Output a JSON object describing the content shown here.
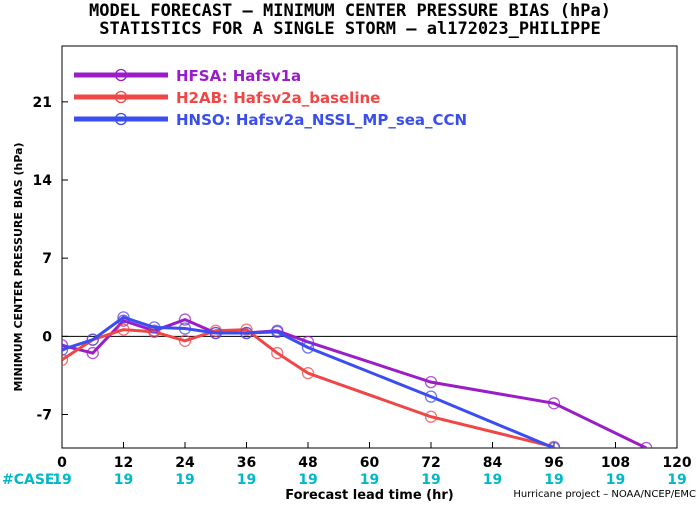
{
  "title": {
    "line1": "MODEL FORECAST – MINIMUM CENTER PRESSURE BIAS (hPa)",
    "line2": "STATISTICS FOR A SINGLE STORM – al172023_PHILIPPE"
  },
  "credit": "Hurricane project – NOAA/NCEP/EMC",
  "case_label": "#CASE",
  "case_counts": [
    "19",
    "19",
    "19",
    "19",
    "19",
    "19",
    "19",
    "19",
    "19",
    "19",
    "19"
  ],
  "colors": {
    "hfsa": "#9a1ec8",
    "h2ab": "#f04646",
    "hnso": "#3a4ef0",
    "case": "#00b8c8",
    "zero_line": "#000000"
  },
  "chart_data": {
    "type": "line",
    "title": "MODEL FORECAST – MINIMUM CENTER PRESSURE BIAS (hPa)",
    "subtitle": "STATISTICS FOR A SINGLE STORM – al172023_PHILIPPE",
    "xlabel": "Forecast lead time (hr)",
    "ylabel": "MINIMUM CENTER PRESSURE BIAS (hPa)",
    "xlim": [
      0,
      120
    ],
    "ylim": [
      -10,
      26
    ],
    "xticks": [
      0,
      12,
      24,
      36,
      48,
      60,
      72,
      84,
      96,
      108,
      120
    ],
    "yticks": [
      -7,
      0,
      7,
      14,
      21
    ],
    "legend_position": "top-left",
    "grid": false,
    "series": [
      {
        "name": "HFSA: Hafsv1a",
        "color": "#9a1ec8",
        "x": [
          0,
          6,
          12,
          18,
          24,
          30,
          36,
          42,
          48,
          72,
          96,
          114
        ],
        "y": [
          -0.8,
          -1.5,
          1.4,
          0.5,
          1.5,
          0.3,
          0.3,
          0.5,
          -0.5,
          -4.1,
          -6.0,
          -10.0
        ]
      },
      {
        "name": "H2AB: Hafsv2a_baseline",
        "color": "#f04646",
        "x": [
          0,
          6,
          12,
          18,
          24,
          30,
          36,
          42,
          48,
          72,
          96
        ],
        "y": [
          -2.1,
          -0.3,
          0.6,
          0.4,
          -0.4,
          0.5,
          0.6,
          -1.5,
          -3.3,
          -7.2,
          -9.9
        ]
      },
      {
        "name": "HNSO: Hafsv2a_NSSL_MP_sea_CCN",
        "color": "#3a4ef0",
        "x": [
          0,
          6,
          12,
          18,
          24,
          30,
          36,
          42,
          48,
          72,
          96
        ],
        "y": [
          -1.2,
          -0.3,
          1.7,
          0.8,
          0.7,
          0.3,
          0.3,
          0.4,
          -1.0,
          -5.4,
          -10.0
        ]
      }
    ]
  }
}
